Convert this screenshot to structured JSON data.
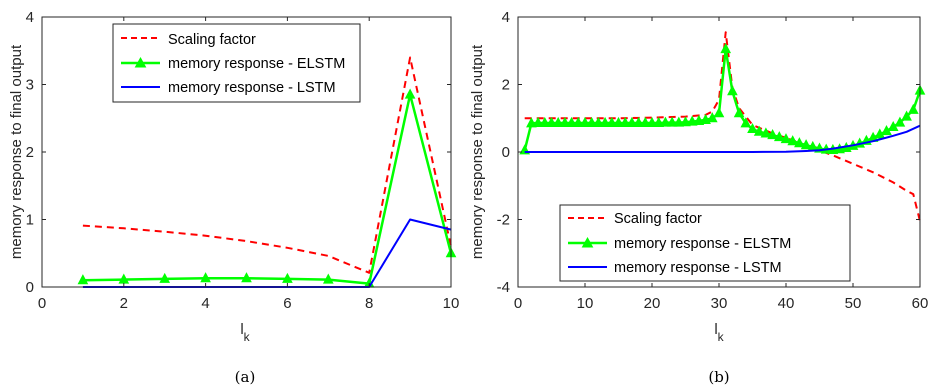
{
  "colors": {
    "scaling": "#ff0000",
    "elstm": "#00ff00",
    "lstm": "#0000ff",
    "axis": "#262626"
  },
  "chart_data": [
    {
      "type": "line",
      "caption": "(a)",
      "xlabel": "l_k",
      "ylabel": "memory response to final output",
      "xlim": [
        0,
        10
      ],
      "ylim": [
        0,
        4
      ],
      "xticks": [
        0,
        2,
        4,
        6,
        8,
        10
      ],
      "yticks": [
        0,
        1,
        2,
        3,
        4
      ],
      "xtick_labels": [
        "0",
        "2",
        "4",
        "6",
        "8",
        "10"
      ],
      "ytick_labels": [
        "0",
        "1",
        "2",
        "3",
        "4"
      ],
      "grid": false,
      "legend_position": "top-center",
      "series": [
        {
          "name": "Scaling factor",
          "style": "dashed",
          "x": [
            1,
            2,
            3,
            4,
            5,
            6,
            7,
            8,
            9,
            10
          ],
          "y": [
            0.91,
            0.87,
            0.82,
            0.76,
            0.68,
            0.58,
            0.46,
            0.21,
            3.4,
            0.6
          ]
        },
        {
          "name": "memory response - ELSTM",
          "style": "solid-triangle",
          "x": [
            1,
            2,
            3,
            4,
            5,
            6,
            7,
            8,
            9,
            10
          ],
          "y": [
            0.1,
            0.11,
            0.12,
            0.13,
            0.13,
            0.12,
            0.11,
            0.05,
            2.85,
            0.5
          ]
        },
        {
          "name": "memory response - LSTM",
          "style": "solid",
          "x": [
            1,
            2,
            3,
            4,
            5,
            6,
            7,
            8,
            9,
            10
          ],
          "y": [
            0,
            0,
            0,
            0,
            0,
            0,
            0,
            0,
            1.0,
            0.85
          ]
        }
      ]
    },
    {
      "type": "line",
      "caption": "(b)",
      "xlabel": "l_k",
      "ylabel": "memory response to final output",
      "xlim": [
        0,
        60
      ],
      "ylim": [
        -4,
        4
      ],
      "xticks": [
        0,
        10,
        20,
        30,
        40,
        50,
        60
      ],
      "yticks": [
        -4,
        -2,
        0,
        2,
        4
      ],
      "xtick_labels": [
        "0",
        "10",
        "20",
        "30",
        "40",
        "50",
        "60"
      ],
      "ytick_labels": [
        "-4",
        "-2",
        "0",
        "2",
        "4"
      ],
      "grid": false,
      "legend_position": "bottom-center",
      "series": [
        {
          "name": "Scaling factor",
          "style": "dashed",
          "x": [
            1,
            5,
            10,
            15,
            20,
            25,
            28,
            29,
            30,
            31,
            32,
            33,
            35,
            38,
            41,
            44,
            47,
            50,
            53,
            56,
            58,
            59,
            60
          ],
          "y": [
            1.0,
            1.0,
            1.0,
            1.0,
            1.02,
            1.05,
            1.1,
            1.2,
            1.55,
            3.55,
            1.9,
            1.3,
            0.8,
            0.55,
            0.35,
            0.12,
            -0.1,
            -0.35,
            -0.6,
            -0.9,
            -1.15,
            -1.25,
            -2.05
          ]
        },
        {
          "name": "memory response - ELSTM",
          "style": "solid-triangle",
          "x": [
            1,
            2,
            3,
            4,
            5,
            6,
            7,
            8,
            9,
            10,
            11,
            12,
            13,
            14,
            15,
            16,
            17,
            18,
            19,
            20,
            21,
            22,
            23,
            24,
            25,
            26,
            27,
            28,
            29,
            30,
            31,
            32,
            33,
            34,
            35,
            36,
            37,
            38,
            39,
            40,
            41,
            42,
            43,
            44,
            45,
            46,
            47,
            48,
            49,
            50,
            51,
            52,
            53,
            54,
            55,
            56,
            57,
            58,
            59,
            60
          ],
          "y": [
            0.05,
            0.85,
            0.86,
            0.86,
            0.86,
            0.86,
            0.86,
            0.86,
            0.86,
            0.86,
            0.86,
            0.86,
            0.86,
            0.86,
            0.86,
            0.86,
            0.86,
            0.86,
            0.86,
            0.86,
            0.86,
            0.87,
            0.87,
            0.87,
            0.88,
            0.9,
            0.92,
            0.95,
            1.0,
            1.15,
            3.05,
            1.8,
            1.15,
            0.85,
            0.68,
            0.6,
            0.55,
            0.5,
            0.44,
            0.38,
            0.32,
            0.26,
            0.2,
            0.15,
            0.1,
            0.07,
            0.06,
            0.08,
            0.12,
            0.18,
            0.25,
            0.33,
            0.42,
            0.52,
            0.62,
            0.74,
            0.87,
            1.05,
            1.25,
            1.82
          ]
        },
        {
          "name": "memory response - LSTM",
          "style": "solid",
          "x": [
            1,
            10,
            20,
            30,
            35,
            40,
            43,
            45,
            47,
            50,
            53,
            56,
            58,
            60
          ],
          "y": [
            0,
            0,
            0,
            0,
            0,
            0.01,
            0.03,
            0.05,
            0.1,
            0.2,
            0.32,
            0.48,
            0.6,
            0.78
          ]
        }
      ]
    }
  ]
}
